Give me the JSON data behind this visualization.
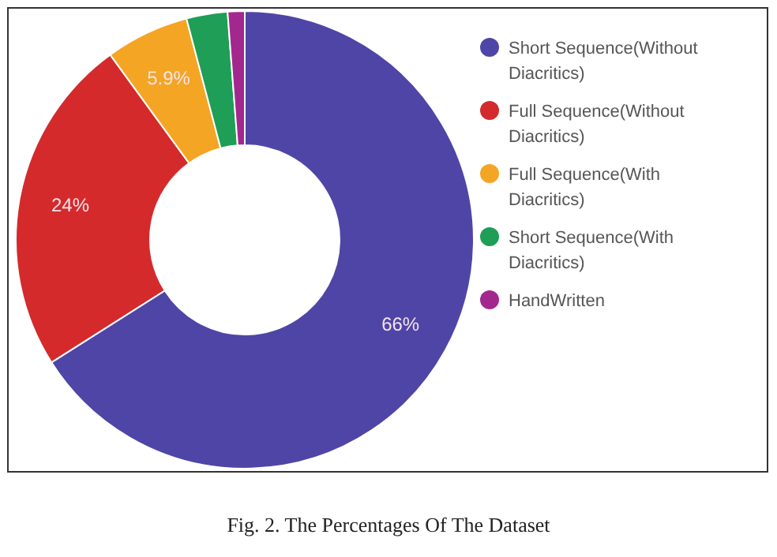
{
  "chart_data": {
    "type": "donut",
    "title": "Fig. 2.  The Percentages Of The Dataset",
    "categories": [
      "Short Sequence(Without Diacritics)",
      "Full Sequence(Without Diacritics)",
      "Full Sequence(With Diacritics)",
      "Short Sequence(With Diacritics)",
      "HandWritten"
    ],
    "values": [
      66,
      24,
      5.9,
      2.9,
      1.2
    ],
    "value_labels": [
      "66%",
      "24%",
      "5.9%",
      null,
      null
    ],
    "colors": [
      "#4f45a6",
      "#d42a2c",
      "#f4a524",
      "#1e9e56",
      "#a3288e"
    ],
    "legend": "top right"
  }
}
